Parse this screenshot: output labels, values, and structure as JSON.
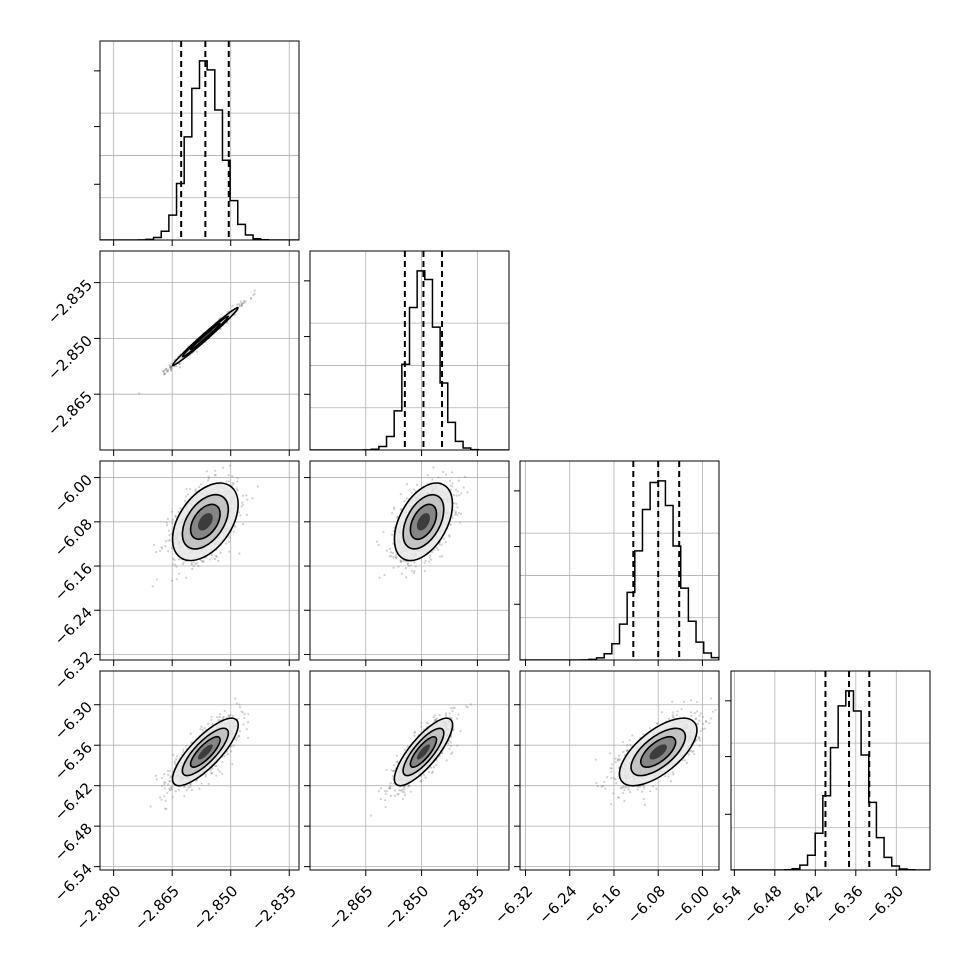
{
  "chart_data": {
    "type": "corner",
    "grid": true,
    "parameters": [
      {
        "ticks": [
          -2.88,
          -2.865,
          -2.85,
          -2.835
        ],
        "tick_labels": [
          "−2.880",
          "−2.865",
          "−2.850",
          "−2.835"
        ],
        "range": [
          -2.8835,
          -2.8325
        ]
      },
      {
        "ticks": [
          -2.865,
          -2.85,
          -2.835
        ],
        "tick_labels": [
          "−2.865",
          "−2.850",
          "−2.835"
        ],
        "range": [
          -2.88,
          -2.8265
        ]
      },
      {
        "ticks": [
          -6.32,
          -6.24,
          -6.16,
          -6.08,
          -6.0
        ],
        "tick_labels": [
          "−6.32",
          "−6.24",
          "−6.16",
          "−6.08",
          "−6.00"
        ],
        "range": [
          -6.33,
          -5.97
        ]
      },
      {
        "ticks": [
          -6.54,
          -6.48,
          -6.42,
          -6.36,
          -6.3
        ],
        "tick_labels": [
          "−6.54",
          "−6.48",
          "−6.42",
          "−6.36",
          "−6.30"
        ],
        "range": [
          -6.545,
          -6.25
        ]
      }
    ],
    "marginals": [
      {
        "quantiles": [
          -2.8627,
          -2.8565,
          -2.8505
        ],
        "mean": -2.8565,
        "sd": 0.0042
      },
      {
        "quantiles": [
          -2.8545,
          -2.8495,
          -2.8445
        ],
        "mean": -2.8495,
        "sd": 0.0039
      },
      {
        "quantiles": [
          -6.125,
          -6.08,
          -6.042
        ],
        "mean": -6.08,
        "sd": 0.035
      },
      {
        "quantiles": [
          -6.405,
          -6.37,
          -6.34
        ],
        "mean": -6.37,
        "sd": 0.025
      }
    ],
    "correlations": [
      {
        "row": 1,
        "col": 0,
        "r": 0.99
      },
      {
        "row": 2,
        "col": 0,
        "r": 0.45
      },
      {
        "row": 2,
        "col": 1,
        "r": 0.45
      },
      {
        "row": 3,
        "col": 0,
        "r": 0.8
      },
      {
        "row": 3,
        "col": 1,
        "r": 0.8
      },
      {
        "row": 3,
        "col": 2,
        "r": 0.65
      }
    ]
  }
}
